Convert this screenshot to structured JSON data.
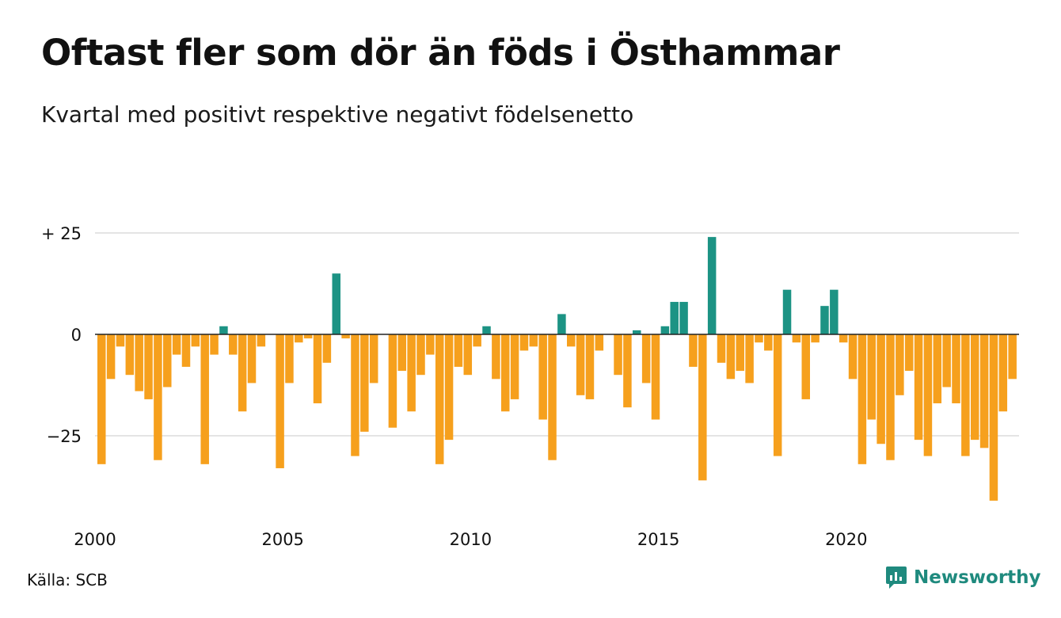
{
  "header": {
    "title": "Oftast fler som dör än föds i Östhammar",
    "subtitle": "Kvartal med positivt respektive negativt födelsenetto"
  },
  "footer": {
    "source": "Källa: SCB",
    "brand": "Newsworthy",
    "brand_icon": "newsworthy-logo-icon"
  },
  "colors": {
    "positive": "#1c9384",
    "negative": "#f6a01d",
    "grid": "#dcdcdc",
    "axis": "#222222",
    "brand": "#1f8a7e"
  },
  "chart_data": {
    "type": "bar",
    "start_year": 2000,
    "periods_per_year": 4,
    "ylim": [
      -42,
      27
    ],
    "y_ticks": [
      {
        "value": 25,
        "label": "+ 25"
      },
      {
        "value": 0,
        "label": "0"
      },
      {
        "value": -25,
        "label": "−25"
      }
    ],
    "x_ticks": [
      {
        "year": 2000,
        "label": "2000"
      },
      {
        "year": 2005,
        "label": "2005"
      },
      {
        "year": 2010,
        "label": "2010"
      },
      {
        "year": 2015,
        "label": "2015"
      },
      {
        "year": 2020,
        "label": "2020"
      }
    ],
    "grid": true,
    "xlabel": "",
    "ylabel": "",
    "values": [
      -32,
      -11,
      -3,
      -10,
      -14,
      -16,
      -31,
      -13,
      -5,
      -8,
      -3,
      -32,
      -5,
      2,
      -5,
      -19,
      -12,
      -3,
      0,
      -33,
      -12,
      -2,
      -1,
      -17,
      -7,
      15,
      -1,
      -30,
      -24,
      -12,
      0,
      -23,
      -9,
      -19,
      -10,
      -5,
      -32,
      -26,
      -8,
      -10,
      -3,
      2,
      -11,
      -19,
      -16,
      -4,
      -3,
      -21,
      -31,
      5,
      -3,
      -15,
      -16,
      -4,
      0,
      -10,
      -18,
      1,
      -12,
      -21,
      2,
      8,
      8,
      -8,
      -36,
      24,
      -7,
      -11,
      -9,
      -12,
      -2,
      -4,
      -30,
      11,
      -2,
      -16,
      -2,
      7,
      11,
      -2,
      -11,
      -32,
      -21,
      -27,
      -31,
      -15,
      -9,
      -26,
      -30,
      -17,
      -13,
      -17,
      -30,
      -26,
      -28,
      -41,
      -19,
      -11
    ]
  }
}
